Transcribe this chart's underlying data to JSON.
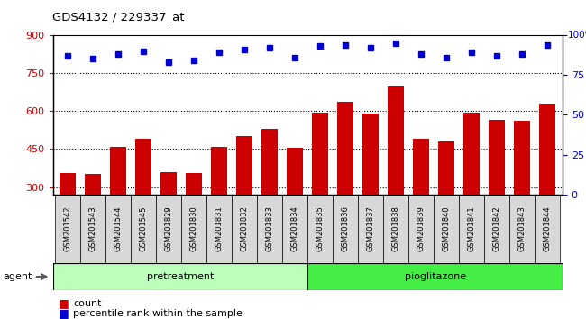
{
  "title": "GDS4132 / 229337_at",
  "categories": [
    "GSM201542",
    "GSM201543",
    "GSM201544",
    "GSM201545",
    "GSM201829",
    "GSM201830",
    "GSM201831",
    "GSM201832",
    "GSM201833",
    "GSM201834",
    "GSM201835",
    "GSM201836",
    "GSM201837",
    "GSM201838",
    "GSM201839",
    "GSM201840",
    "GSM201841",
    "GSM201842",
    "GSM201843",
    "GSM201844"
  ],
  "counts": [
    355,
    350,
    460,
    490,
    360,
    355,
    460,
    500,
    530,
    455,
    595,
    635,
    590,
    700,
    490,
    480,
    595,
    565,
    560,
    630
  ],
  "percentile_ranks": [
    87,
    85,
    88,
    90,
    83,
    84,
    89,
    91,
    92,
    86,
    93,
    94,
    92,
    95,
    88,
    86,
    89,
    87,
    88,
    94
  ],
  "pretreatment_count": 10,
  "pioglitazone_count": 10,
  "bar_color": "#cc0000",
  "dot_color": "#0000cc",
  "pretreatment_color": "#bbffbb",
  "pioglitazone_color": "#44ee44",
  "ylim_left": [
    270,
    900
  ],
  "ylim_right": [
    0,
    100
  ],
  "yticks_left": [
    300,
    450,
    600,
    750,
    900
  ],
  "yticks_right": [
    0,
    25,
    50,
    75,
    100
  ],
  "grid_values": [
    300,
    450,
    600,
    750
  ],
  "legend_count_label": "count",
  "legend_percentile_label": "percentile rank within the sample",
  "agent_label": "agent"
}
